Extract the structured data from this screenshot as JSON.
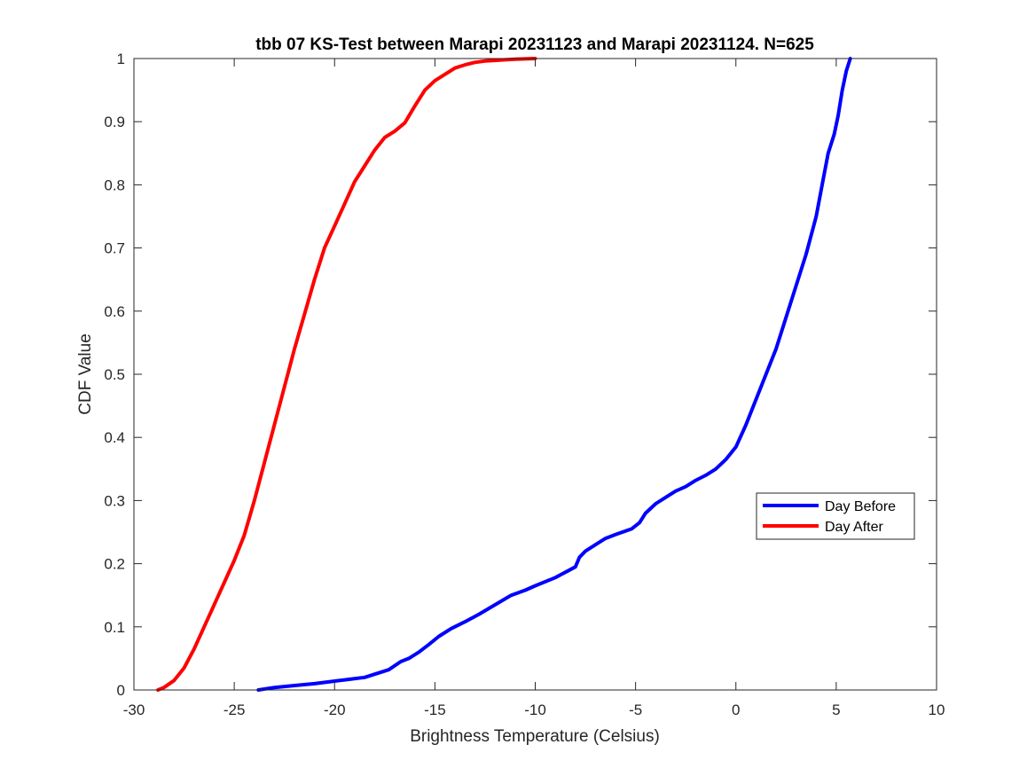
{
  "chart_data": {
    "type": "line",
    "title": "tbb 07 KS-Test between Marapi 20231123 and Marapi 20231124. N=625",
    "xlabel": "Brightness Temperature (Celsius)",
    "ylabel": "CDF Value",
    "xlim": [
      -30,
      10
    ],
    "ylim": [
      0,
      1
    ],
    "xticks": [
      -30,
      -25,
      -20,
      -15,
      -10,
      -5,
      0,
      5,
      10
    ],
    "yticks": [
      0,
      0.1,
      0.2,
      0.3,
      0.4,
      0.5,
      0.6,
      0.7,
      0.8,
      0.9,
      1
    ],
    "xtick_labels": [
      "-30",
      "-25",
      "-20",
      "-15",
      "-10",
      "-5",
      "0",
      "5",
      "10"
    ],
    "ytick_labels": [
      "0",
      "0.1",
      "0.2",
      "0.3",
      "0.4",
      "0.5",
      "0.6",
      "0.7",
      "0.8",
      "0.9",
      "1"
    ],
    "grid": false,
    "legend_position": "right",
    "series": [
      {
        "name": "Day Before",
        "color": "#0000ff",
        "x": [
          -23.8,
          -23.0,
          -22.0,
          -21.0,
          -20.0,
          -19.5,
          -18.5,
          -18.0,
          -17.3,
          -16.7,
          -16.3,
          -15.8,
          -15.3,
          -14.8,
          -14.2,
          -13.5,
          -12.8,
          -12.0,
          -11.2,
          -10.5,
          -10.0,
          -9.0,
          -8.0,
          -7.8,
          -7.5,
          -7.0,
          -6.5,
          -6.0,
          -5.2,
          -4.8,
          -4.5,
          -4.0,
          -3.5,
          -3.0,
          -2.5,
          -2.0,
          -1.5,
          -1.0,
          -0.5,
          0.0,
          0.5,
          1.0,
          1.5,
          2.0,
          2.5,
          3.0,
          3.5,
          4.0,
          4.3,
          4.6,
          4.9,
          5.1,
          5.3,
          5.5,
          5.7
        ],
        "y": [
          0.0,
          0.004,
          0.007,
          0.01,
          0.014,
          0.016,
          0.02,
          0.025,
          0.032,
          0.045,
          0.05,
          0.06,
          0.072,
          0.085,
          0.097,
          0.108,
          0.12,
          0.135,
          0.15,
          0.158,
          0.165,
          0.178,
          0.195,
          0.21,
          0.22,
          0.23,
          0.24,
          0.246,
          0.255,
          0.265,
          0.28,
          0.295,
          0.305,
          0.315,
          0.322,
          0.332,
          0.34,
          0.35,
          0.365,
          0.385,
          0.42,
          0.46,
          0.5,
          0.54,
          0.59,
          0.64,
          0.69,
          0.75,
          0.8,
          0.85,
          0.88,
          0.91,
          0.95,
          0.98,
          1.0
        ]
      },
      {
        "name": "Day After",
        "color": "#ff0000",
        "x": [
          -28.8,
          -28.5,
          -28.0,
          -27.5,
          -27.0,
          -26.5,
          -26.0,
          -25.5,
          -25.0,
          -24.5,
          -24.0,
          -23.5,
          -23.0,
          -22.5,
          -22.0,
          -21.5,
          -21.0,
          -20.5,
          -20.0,
          -19.5,
          -19.0,
          -18.5,
          -18.0,
          -17.5,
          -17.0,
          -16.5,
          -16.0,
          -15.5,
          -15.0,
          -14.5,
          -14.0,
          -13.5,
          -13.0,
          -12.5,
          -12.0,
          -11.5,
          -11.0,
          -10.0
        ],
        "y": [
          0.0,
          0.004,
          0.015,
          0.035,
          0.065,
          0.1,
          0.135,
          0.17,
          0.205,
          0.245,
          0.3,
          0.36,
          0.42,
          0.48,
          0.54,
          0.595,
          0.65,
          0.7,
          0.735,
          0.77,
          0.805,
          0.83,
          0.855,
          0.875,
          0.885,
          0.898,
          0.925,
          0.95,
          0.965,
          0.975,
          0.985,
          0.99,
          0.994,
          0.996,
          0.997,
          0.998,
          0.999,
          1.0
        ]
      }
    ]
  }
}
